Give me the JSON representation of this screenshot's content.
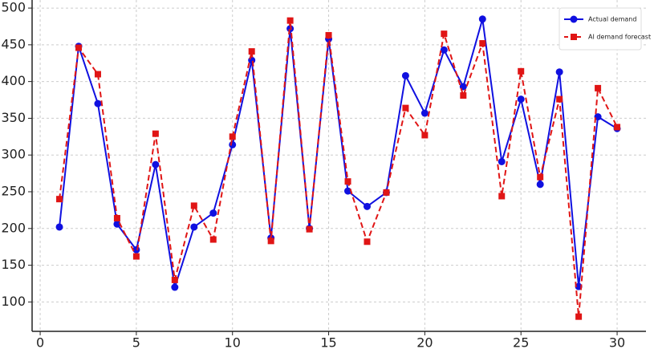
{
  "chart_data": {
    "type": "line",
    "x": [
      1,
      2,
      3,
      4,
      5,
      6,
      7,
      8,
      9,
      10,
      11,
      12,
      13,
      14,
      15,
      16,
      17,
      18,
      19,
      20,
      21,
      22,
      23,
      24,
      25,
      26,
      27,
      28,
      29,
      30
    ],
    "series": [
      {
        "name": "Actual demand",
        "color": "#1010e0",
        "marker": "circle",
        "dash": false,
        "values": [
          202,
          448,
          370,
          206,
          171,
          287,
          120,
          202,
          221,
          314,
          429,
          187,
          472,
          200,
          458,
          251,
          230,
          249,
          408,
          357,
          443,
          393,
          485,
          291,
          376,
          260,
          413,
          121,
          352,
          336
        ]
      },
      {
        "name": "AI demand forecast",
        "color": "#e01515",
        "marker": "square",
        "dash": true,
        "values": [
          240,
          446,
          410,
          214,
          162,
          329,
          130,
          231,
          185,
          325,
          441,
          183,
          483,
          199,
          463,
          264,
          182,
          249,
          364,
          327,
          465,
          381,
          452,
          244,
          414,
          270,
          376,
          80,
          391,
          338
        ]
      }
    ],
    "xlim": [
      -0.42,
      31.5
    ],
    "ylim": [
      60,
      511
    ],
    "xticks": [
      0,
      5,
      10,
      15,
      20,
      25,
      30
    ],
    "yticks": [
      100,
      150,
      200,
      250,
      300,
      350,
      400,
      450,
      500
    ],
    "grid": true,
    "legend": "upper right"
  }
}
